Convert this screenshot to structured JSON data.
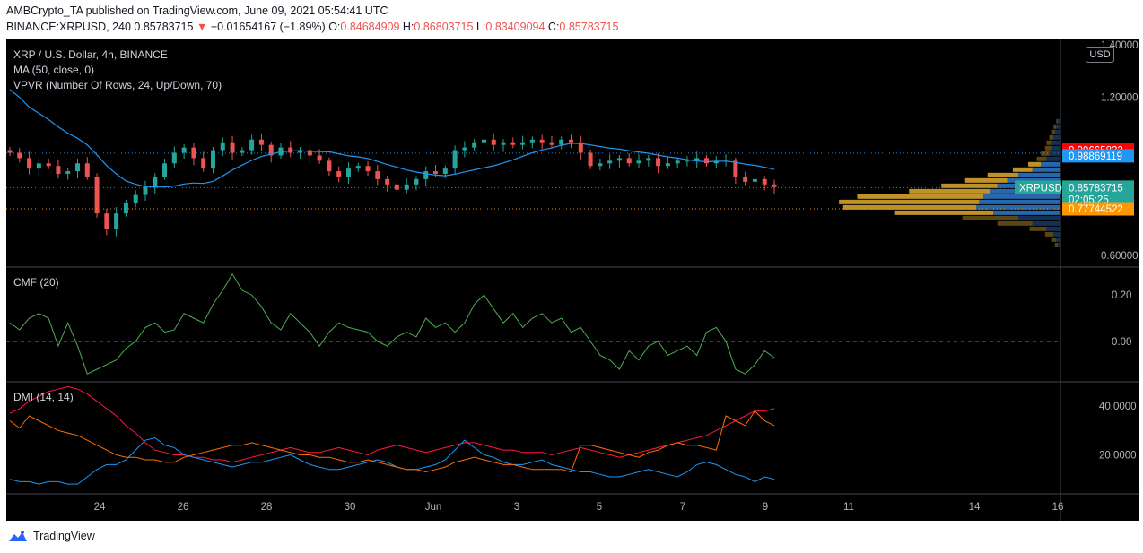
{
  "header": {
    "published": "AMBCrypto_TA published on TradingView.com, June 09, 2021 05:54:41 UTC",
    "symbol_line": "BINANCE:XRPUSD, 240",
    "last": "0.85783715",
    "change_arrow": "▼",
    "change": "−0.01654167 (−1.89%)",
    "o_label": "O:",
    "o": "0.84684909",
    "h_label": "H:",
    "h": "0.86803715",
    "l_label": "L:",
    "l": "0.83409094",
    "c_label": "C:",
    "c": "0.85783715"
  },
  "legend": {
    "title": "XRP / U.S. Dollar, 4h, BINANCE",
    "ma": "MA (50, close, 0)",
    "vpvr": "VPVR (Number Of Rows, 24, Up/Down, 70)",
    "cmf": "CMF (20)",
    "dmi": "DMI (14, 14)"
  },
  "currency_button": "USD",
  "footer": {
    "brand": "TradingView"
  },
  "colors": {
    "up": "#26a69a",
    "down": "#ef5350",
    "ma": "#2196f3",
    "cmf": "#4caf50",
    "dmi_adx": "#ff1744",
    "dmi_plus": "#2196f3",
    "dmi_minus": "#ff6d00",
    "vp_up": "#2a6db5",
    "vp_down": "#c89a2b"
  },
  "chart_data": [
    {
      "type": "candlestick",
      "title": "XRP / U.S. Dollar, 4h, BINANCE",
      "y_ticks": [
        "1.40000000",
        "1.20000000",
        "0.60000000"
      ],
      "ylim": [
        0.56,
        1.42
      ],
      "x_ticks": [
        "24",
        "26",
        "28",
        "30",
        "Jun",
        "3",
        "5",
        "7",
        "9",
        "11",
        "14",
        "16"
      ],
      "close": [
        0.99,
        0.97,
        0.93,
        0.95,
        0.94,
        0.91,
        0.92,
        0.95,
        0.9,
        0.76,
        0.7,
        0.76,
        0.8,
        0.83,
        0.86,
        0.9,
        0.95,
        0.99,
        1.01,
        0.97,
        0.93,
        1.0,
        1.03,
        0.99,
        1.0,
        1.04,
        1.02,
        0.98,
        1.01,
        0.99,
        1.0,
        0.98,
        0.96,
        0.92,
        0.9,
        0.93,
        0.94,
        0.92,
        0.89,
        0.87,
        0.85,
        0.87,
        0.89,
        0.92,
        0.91,
        0.93,
        1.0,
        1.01,
        1.03,
        1.04,
        1.02,
        1.03,
        1.02,
        1.03,
        1.04,
        1.03,
        1.02,
        1.04,
        1.03,
        0.99,
        0.94,
        0.95,
        0.96,
        0.97,
        0.95,
        0.96,
        0.97,
        0.94,
        0.95,
        0.96,
        0.96,
        0.97,
        0.95,
        0.96,
        0.96,
        0.9,
        0.88,
        0.89,
        0.87,
        0.86
      ],
      "price_labels": [
        {
          "text": "0.99665822",
          "value": 0.99665822,
          "color": "#ff0000"
        },
        {
          "text": "0.98869119",
          "value": 0.98869119,
          "color": "#2196f3"
        },
        {
          "text": "0.85783715",
          "value": 0.85783715,
          "color": "#26a69a",
          "name": "XRPUSD",
          "countdown": "02:05:25"
        },
        {
          "text": "0.77744522",
          "value": 0.77744522,
          "color": "#ff9800"
        }
      ],
      "vpvr": {
        "rows": 24,
        "up": [
          2,
          3,
          4,
          5,
          6,
          6,
          8,
          10,
          14,
          20,
          30,
          38,
          45,
          50,
          55,
          58,
          60,
          48,
          30,
          20,
          10,
          5,
          3,
          2
        ],
        "down": [
          1,
          2,
          2,
          3,
          4,
          5,
          6,
          7,
          9,
          14,
          22,
          30,
          40,
          58,
          90,
          100,
          95,
          70,
          40,
          25,
          12,
          6,
          3,
          2
        ]
      }
    },
    {
      "type": "line",
      "title": "CMF (20)",
      "y_ticks": [
        "0.20",
        "0.00"
      ],
      "ylim": [
        -0.17,
        0.32
      ],
      "values": [
        0.08,
        0.05,
        0.1,
        0.12,
        0.1,
        -0.02,
        0.08,
        -0.02,
        -0.14,
        -0.12,
        -0.1,
        -0.08,
        -0.03,
        0.0,
        0.06,
        0.08,
        0.04,
        0.05,
        0.12,
        0.1,
        0.08,
        0.16,
        0.22,
        0.29,
        0.22,
        0.2,
        0.15,
        0.08,
        0.05,
        0.12,
        0.08,
        0.04,
        -0.02,
        0.04,
        0.08,
        0.06,
        0.05,
        0.04,
        0.0,
        -0.02,
        0.02,
        0.04,
        0.02,
        0.1,
        0.06,
        0.08,
        0.04,
        0.08,
        0.16,
        0.2,
        0.14,
        0.08,
        0.12,
        0.06,
        0.1,
        0.12,
        0.08,
        0.1,
        0.04,
        0.06,
        0.0,
        -0.06,
        -0.08,
        -0.12,
        -0.04,
        -0.08,
        -0.02,
        0.0,
        -0.06,
        -0.04,
        -0.02,
        -0.06,
        0.04,
        0.06,
        0.0,
        -0.12,
        -0.14,
        -0.1,
        -0.04,
        -0.07
      ]
    },
    {
      "type": "line",
      "title": "DMI (14, 14)",
      "y_ticks": [
        "40.0000",
        "20.0000"
      ],
      "ylim": [
        4,
        50
      ],
      "series": [
        {
          "values": [
            37,
            39,
            42,
            44,
            46,
            47,
            48,
            47,
            45,
            42,
            39,
            36,
            32,
            29,
            25,
            22,
            21,
            20,
            20,
            19,
            19,
            18,
            18,
            17,
            18,
            19,
            20,
            21,
            22,
            23,
            22,
            21,
            21,
            22,
            23,
            22,
            21,
            20,
            22,
            23,
            24,
            23,
            22,
            21,
            22,
            23,
            24,
            25,
            25,
            24,
            23,
            22,
            22,
            21,
            21,
            21,
            20,
            21,
            22,
            23,
            22,
            21,
            20,
            19,
            20,
            21,
            22,
            23,
            24,
            25,
            26,
            27,
            28,
            30,
            32,
            34,
            36,
            38,
            38,
            39
          ]
        },
        {
          "values": [
            10,
            9,
            9,
            8,
            9,
            9,
            8,
            8,
            11,
            14,
            16,
            16,
            18,
            22,
            26,
            27,
            24,
            23,
            20,
            19,
            18,
            17,
            16,
            15,
            16,
            17,
            17,
            18,
            19,
            20,
            18,
            16,
            15,
            14,
            14,
            15,
            16,
            17,
            18,
            17,
            15,
            14,
            14,
            15,
            16,
            18,
            22,
            26,
            23,
            20,
            19,
            17,
            16,
            16,
            17,
            18,
            16,
            15,
            14,
            13,
            13,
            12,
            11,
            11,
            12,
            13,
            14,
            13,
            12,
            11,
            13,
            16,
            17,
            16,
            14,
            12,
            11,
            9,
            11,
            10
          ]
        },
        {
          "values": [
            34,
            31,
            36,
            34,
            32,
            30,
            29,
            28,
            26,
            24,
            22,
            20,
            19,
            19,
            18,
            18,
            17,
            17,
            19,
            20,
            21,
            22,
            23,
            24,
            24,
            25,
            24,
            23,
            22,
            21,
            20,
            20,
            19,
            19,
            18,
            17,
            17,
            18,
            17,
            16,
            15,
            14,
            14,
            13,
            14,
            15,
            17,
            18,
            19,
            18,
            17,
            16,
            16,
            15,
            14,
            14,
            14,
            14,
            13,
            24,
            24,
            23,
            22,
            21,
            20,
            19,
            21,
            22,
            24,
            25,
            24,
            24,
            23,
            22,
            36,
            34,
            32,
            38,
            34,
            32
          ]
        }
      ]
    }
  ]
}
